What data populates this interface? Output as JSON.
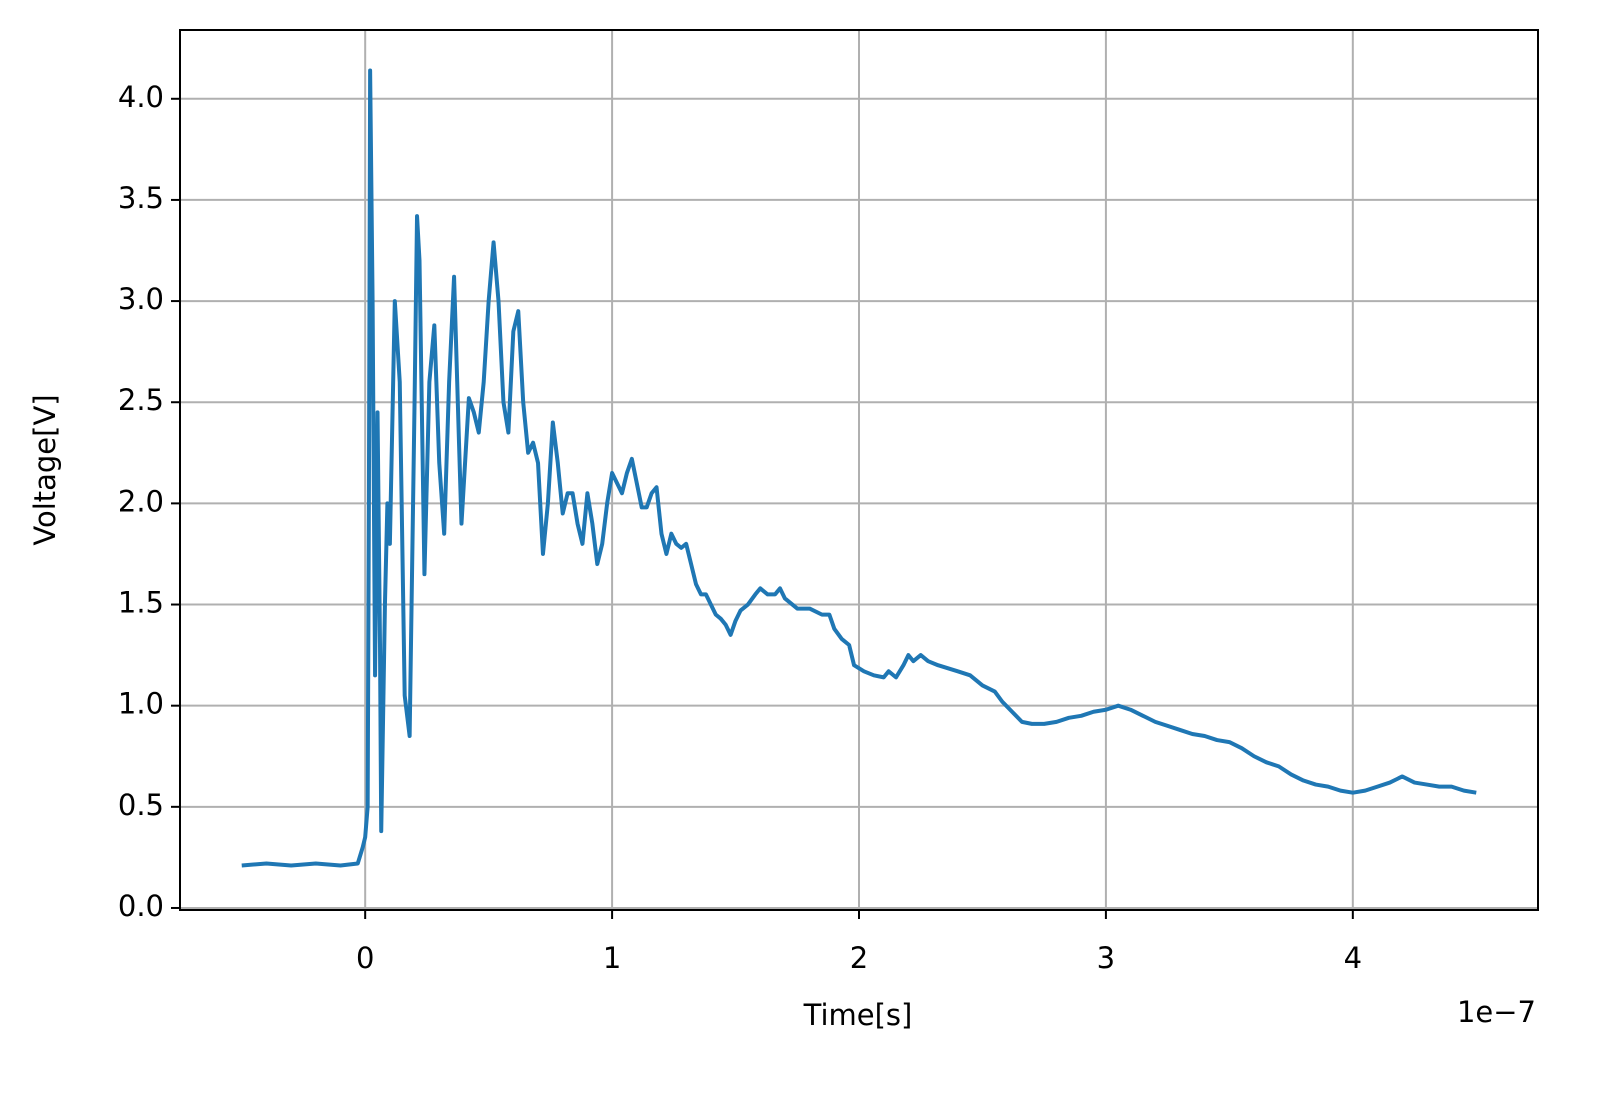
{
  "chart_data": {
    "type": "line",
    "xlabel": "Time[s]",
    "ylabel": "Voltage[V]",
    "x_offset_label": "1e−7",
    "xlim": [
      -0.75,
      4.75
    ],
    "ylim": [
      -0.01,
      4.34
    ],
    "xticks": [
      0,
      1,
      2,
      3,
      4
    ],
    "yticks": [
      {
        "value": 0,
        "label": "0.0"
      },
      0.5,
      {
        "value": 1,
        "label": "1.0"
      },
      1.5,
      {
        "value": 2,
        "label": "2.0"
      },
      2.5,
      {
        "value": 3,
        "label": "3.0"
      },
      3.5,
      {
        "value": 4,
        "label": "4.0"
      }
    ],
    "grid": true,
    "series": [
      {
        "color": "#1f77b4",
        "x": [
          -0.5,
          -0.4,
          -0.3,
          -0.2,
          -0.1,
          -0.03,
          -0.01,
          0.0,
          0.01,
          0.015,
          0.02,
          0.03,
          0.04,
          0.05,
          0.06,
          0.065,
          0.08,
          0.09,
          0.1,
          0.12,
          0.14,
          0.16,
          0.18,
          0.2,
          0.21,
          0.22,
          0.24,
          0.26,
          0.28,
          0.3,
          0.32,
          0.34,
          0.36,
          0.38,
          0.39,
          0.42,
          0.44,
          0.46,
          0.48,
          0.5,
          0.52,
          0.54,
          0.56,
          0.58,
          0.6,
          0.62,
          0.64,
          0.66,
          0.68,
          0.7,
          0.72,
          0.74,
          0.76,
          0.78,
          0.8,
          0.82,
          0.84,
          0.86,
          0.88,
          0.9,
          0.92,
          0.94,
          0.96,
          0.98,
          1.0,
          1.02,
          1.04,
          1.06,
          1.08,
          1.1,
          1.12,
          1.14,
          1.16,
          1.18,
          1.2,
          1.22,
          1.24,
          1.26,
          1.28,
          1.3,
          1.32,
          1.34,
          1.36,
          1.38,
          1.4,
          1.42,
          1.44,
          1.46,
          1.48,
          1.5,
          1.52,
          1.55,
          1.58,
          1.6,
          1.63,
          1.66,
          1.68,
          1.7,
          1.75,
          1.8,
          1.85,
          1.88,
          1.9,
          1.93,
          1.96,
          1.98,
          2.02,
          2.06,
          2.1,
          2.12,
          2.15,
          2.18,
          2.2,
          2.22,
          2.25,
          2.28,
          2.32,
          2.4,
          2.45,
          2.5,
          2.55,
          2.58,
          2.62,
          2.66,
          2.7,
          2.75,
          2.8,
          2.85,
          2.9,
          2.95,
          3.0,
          3.05,
          3.1,
          3.15,
          3.2,
          3.25,
          3.3,
          3.35,
          3.4,
          3.45,
          3.5,
          3.55,
          3.6,
          3.65,
          3.7,
          3.75,
          3.8,
          3.85,
          3.9,
          3.95,
          4.0,
          4.05,
          4.1,
          4.15,
          4.2,
          4.25,
          4.3,
          4.35,
          4.4,
          4.45,
          4.5
        ],
        "values": [
          0.21,
          0.22,
          0.21,
          0.22,
          0.21,
          0.22,
          0.3,
          0.35,
          0.5,
          2.0,
          4.14,
          3.0,
          1.15,
          2.45,
          1.3,
          0.38,
          1.5,
          2.0,
          1.8,
          3.0,
          2.6,
          1.05,
          0.85,
          2.5,
          3.42,
          3.2,
          1.65,
          2.6,
          2.88,
          2.2,
          1.85,
          2.6,
          3.12,
          2.3,
          1.9,
          2.52,
          2.45,
          2.35,
          2.6,
          3.0,
          3.29,
          3.0,
          2.5,
          2.35,
          2.85,
          2.95,
          2.5,
          2.25,
          2.3,
          2.2,
          1.75,
          2.0,
          2.4,
          2.2,
          1.95,
          2.05,
          2.05,
          1.9,
          1.8,
          2.05,
          1.9,
          1.7,
          1.8,
          2.0,
          2.15,
          2.1,
          2.05,
          2.15,
          2.22,
          2.1,
          1.98,
          1.98,
          2.05,
          2.08,
          1.85,
          1.75,
          1.85,
          1.8,
          1.78,
          1.8,
          1.7,
          1.6,
          1.55,
          1.55,
          1.5,
          1.45,
          1.43,
          1.4,
          1.35,
          1.42,
          1.47,
          1.5,
          1.55,
          1.58,
          1.55,
          1.55,
          1.58,
          1.53,
          1.48,
          1.48,
          1.45,
          1.45,
          1.38,
          1.33,
          1.3,
          1.2,
          1.17,
          1.15,
          1.14,
          1.17,
          1.14,
          1.2,
          1.25,
          1.22,
          1.25,
          1.22,
          1.2,
          1.17,
          1.15,
          1.1,
          1.07,
          1.02,
          0.97,
          0.92,
          0.91,
          0.91,
          0.92,
          0.94,
          0.95,
          0.97,
          0.98,
          1.0,
          0.98,
          0.95,
          0.92,
          0.9,
          0.88,
          0.86,
          0.85,
          0.83,
          0.82,
          0.79,
          0.75,
          0.72,
          0.7,
          0.66,
          0.63,
          0.61,
          0.6,
          0.58,
          0.57,
          0.58,
          0.6,
          0.62,
          0.65,
          0.62,
          0.61,
          0.6,
          0.6,
          0.58,
          0.57
        ]
      }
    ]
  }
}
